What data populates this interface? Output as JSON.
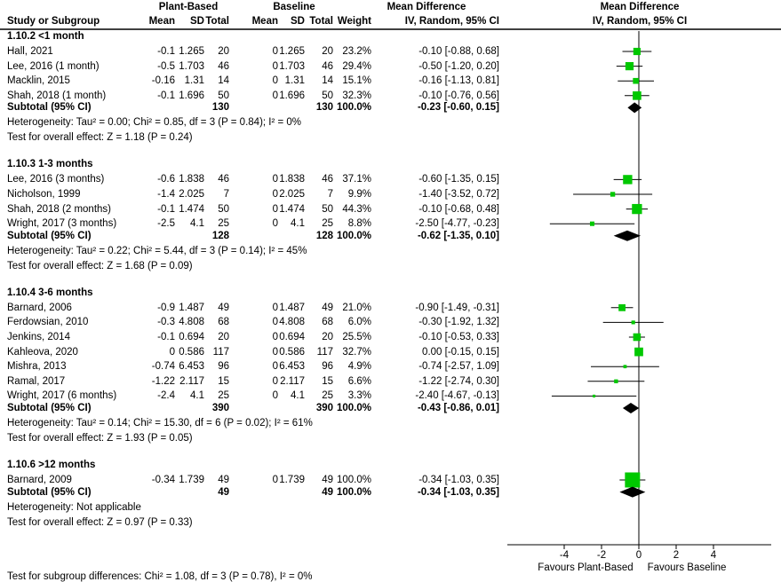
{
  "header": {
    "exp": "Plant-Based",
    "ctl": "Baseline",
    "md1": "Mean Difference",
    "md2": "Mean Difference",
    "study": "Study or Subgroup",
    "mean": "Mean",
    "sd": "SD",
    "total": "Total",
    "mean2": "Mean",
    "sd2": "SD",
    "total2": "Total",
    "weight": "Weight",
    "ci1": "IV, Random, 95% CI",
    "ci2": "IV, Random, 95% CI"
  },
  "chart_data": {
    "type": "forest",
    "xlim": [
      -7,
      7
    ],
    "xticks": [
      "-4",
      "-2",
      "0",
      "2",
      "4"
    ],
    "xlabel_left": "Favours Plant-Based",
    "xlabel_right": "Favours Baseline",
    "colors": {
      "square": "#00c800",
      "diamond": "#000000"
    },
    "groups": [
      {
        "title": "1.10.2 <1 month",
        "studies": [
          [
            "Hall, 2021",
            "-0.1",
            "1.265",
            "20",
            "0",
            "1.265",
            "20",
            "23.2%",
            "-0.10 [-0.88, 0.68]",
            -0.1,
            -0.88,
            0.68,
            23.2
          ],
          [
            "Lee, 2016 (1 month)",
            "-0.5",
            "1.703",
            "46",
            "0",
            "1.703",
            "46",
            "29.4%",
            "-0.50 [-1.20, 0.20]",
            -0.5,
            -1.2,
            0.2,
            29.4
          ],
          [
            "Macklin, 2015",
            "-0.16",
            "1.31",
            "14",
            "0",
            "1.31",
            "14",
            "15.1%",
            "-0.16 [-1.13, 0.81]",
            -0.16,
            -1.13,
            0.81,
            15.1
          ],
          [
            "Shah, 2018 (1 month)",
            "-0.1",
            "1.696",
            "50",
            "0",
            "1.696",
            "50",
            "32.3%",
            "-0.10 [-0.76, 0.56]",
            -0.1,
            -0.76,
            0.56,
            32.3
          ]
        ],
        "subtotal": [
          "Subtotal (95% CI)",
          "130",
          "130",
          "100.0%",
          "-0.23 [-0.60, 0.15]",
          -0.23,
          -0.6,
          0.15
        ],
        "het": "Heterogeneity: Tau² = 0.00; Chi² = 0.85, df = 3 (P = 0.84); I² = 0%",
        "test": "Test for overall effect: Z = 1.18 (P = 0.24)"
      },
      {
        "title": "1.10.3 1-3 months",
        "studies": [
          [
            "Lee, 2016 (3 months)",
            "-0.6",
            "1.838",
            "46",
            "0",
            "1.838",
            "46",
            "37.1%",
            "-0.60 [-1.35, 0.15]",
            -0.6,
            -1.35,
            0.15,
            37.1
          ],
          [
            "Nicholson, 1999",
            "-1.4",
            "2.025",
            "7",
            "0",
            "2.025",
            "7",
            "9.9%",
            "-1.40 [-3.52, 0.72]",
            -1.4,
            -3.52,
            0.72,
            9.9
          ],
          [
            "Shah, 2018 (2 months)",
            "-0.1",
            "1.474",
            "50",
            "0",
            "1.474",
            "50",
            "44.3%",
            "-0.10 [-0.68, 0.48]",
            -0.1,
            -0.68,
            0.48,
            44.3
          ],
          [
            "Wright, 2017 (3 months)",
            "-2.5",
            "4.1",
            "25",
            "0",
            "4.1",
            "25",
            "8.8%",
            "-2.50 [-4.77, -0.23]",
            -2.5,
            -4.77,
            -0.23,
            8.8
          ]
        ],
        "subtotal": [
          "Subtotal (95% CI)",
          "128",
          "128",
          "100.0%",
          "-0.62 [-1.35, 0.10]",
          -0.62,
          -1.35,
          0.1
        ],
        "het": "Heterogeneity: Tau² = 0.22; Chi² = 5.44, df = 3 (P = 0.14); I² = 45%",
        "test": "Test for overall effect: Z = 1.68 (P = 0.09)"
      },
      {
        "title": "1.10.4 3-6 months",
        "studies": [
          [
            "Barnard, 2006",
            "-0.9",
            "1.487",
            "49",
            "0",
            "1.487",
            "49",
            "21.0%",
            "-0.90 [-1.49, -0.31]",
            -0.9,
            -1.49,
            -0.31,
            21.0
          ],
          [
            "Ferdowsian, 2010",
            "-0.3",
            "4.808",
            "68",
            "0",
            "4.808",
            "68",
            "6.0%",
            "-0.30 [-1.92, 1.32]",
            -0.3,
            -1.92,
            1.32,
            6.0
          ],
          [
            "Jenkins, 2014",
            "-0.1",
            "0.694",
            "20",
            "0",
            "0.694",
            "20",
            "25.5%",
            "-0.10 [-0.53, 0.33]",
            -0.1,
            -0.53,
            0.33,
            25.5
          ],
          [
            "Kahleova, 2020",
            "0",
            "0.586",
            "117",
            "0",
            "0.586",
            "117",
            "32.7%",
            "0.00 [-0.15, 0.15]",
            0.0,
            -0.15,
            0.15,
            32.7
          ],
          [
            "Mishra, 2013",
            "-0.74",
            "6.453",
            "96",
            "0",
            "6.453",
            "96",
            "4.9%",
            "-0.74 [-2.57, 1.09]",
            -0.74,
            -2.57,
            1.09,
            4.9
          ],
          [
            "Ramal, 2017",
            "-1.22",
            "2.117",
            "15",
            "0",
            "2.117",
            "15",
            "6.6%",
            "-1.22 [-2.74, 0.30]",
            -1.22,
            -2.74,
            0.3,
            6.6
          ],
          [
            "Wright, 2017 (6 months)",
            "-2.4",
            "4.1",
            "25",
            "0",
            "4.1",
            "25",
            "3.3%",
            "-2.40 [-4.67, -0.13]",
            -2.4,
            -4.67,
            -0.13,
            3.3
          ]
        ],
        "subtotal": [
          "Subtotal (95% CI)",
          "390",
          "390",
          "100.0%",
          "-0.43 [-0.86, 0.01]",
          -0.43,
          -0.86,
          0.01
        ],
        "het": "Heterogeneity: Tau² = 0.14; Chi² = 15.30, df = 6 (P = 0.02); I² = 61%",
        "test": "Test for overall effect: Z = 1.93 (P = 0.05)"
      },
      {
        "title": "1.10.6 >12 months",
        "studies": [
          [
            "Barnard, 2009",
            "-0.34",
            "1.739",
            "49",
            "0",
            "1.739",
            "49",
            "100.0%",
            "-0.34 [-1.03, 0.35]",
            -0.34,
            -1.03,
            0.35,
            100.0
          ]
        ],
        "subtotal": [
          "Subtotal (95% CI)",
          "49",
          "49",
          "100.0%",
          "-0.34 [-1.03, 0.35]",
          -0.34,
          -1.03,
          0.35
        ],
        "het": "Heterogeneity: Not applicable",
        "test": "Test for overall effect: Z = 0.97 (P = 0.33)"
      }
    ],
    "footer": "Test for subgroup differences: Chi² = 1.08, df = 3 (P = 0.78), I² = 0%"
  }
}
